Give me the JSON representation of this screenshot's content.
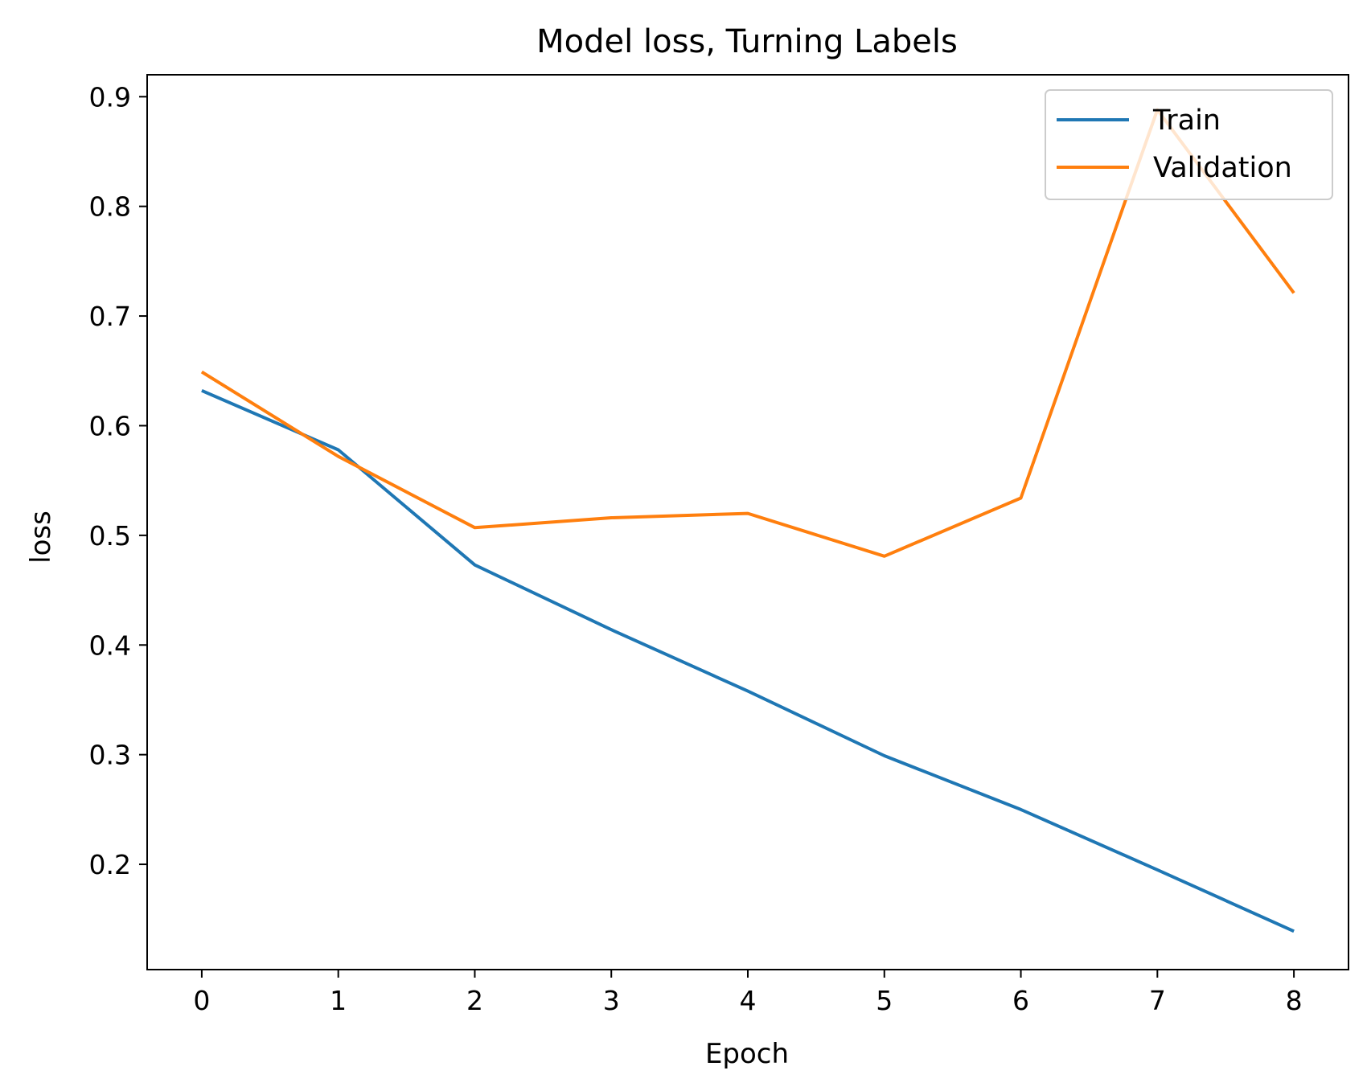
{
  "chart_data": {
    "type": "line",
    "title": "Model loss, Turning Labels",
    "xlabel": "Epoch",
    "ylabel": "loss",
    "x": [
      0,
      1,
      2,
      3,
      4,
      5,
      6,
      7,
      8
    ],
    "xticks": [
      "0",
      "1",
      "2",
      "3",
      "4",
      "5",
      "6",
      "7",
      "8"
    ],
    "yticks": [
      "0.2",
      "0.3",
      "0.4",
      "0.5",
      "0.6",
      "0.7",
      "0.8",
      "0.9"
    ],
    "xlim": [
      -0.4,
      8.4
    ],
    "ylim": [
      0.104,
      0.92
    ],
    "grid": false,
    "legend": "top-right",
    "series": [
      {
        "name": "Train",
        "color": "#1f77b4",
        "values": [
          0.632,
          0.578,
          0.473,
          0.414,
          0.358,
          0.299,
          0.25,
          0.195,
          0.139
        ]
      },
      {
        "name": "Validation",
        "color": "#ff7f0e",
        "values": [
          0.649,
          0.572,
          0.507,
          0.516,
          0.52,
          0.481,
          0.534,
          0.888,
          0.721
        ]
      }
    ]
  }
}
